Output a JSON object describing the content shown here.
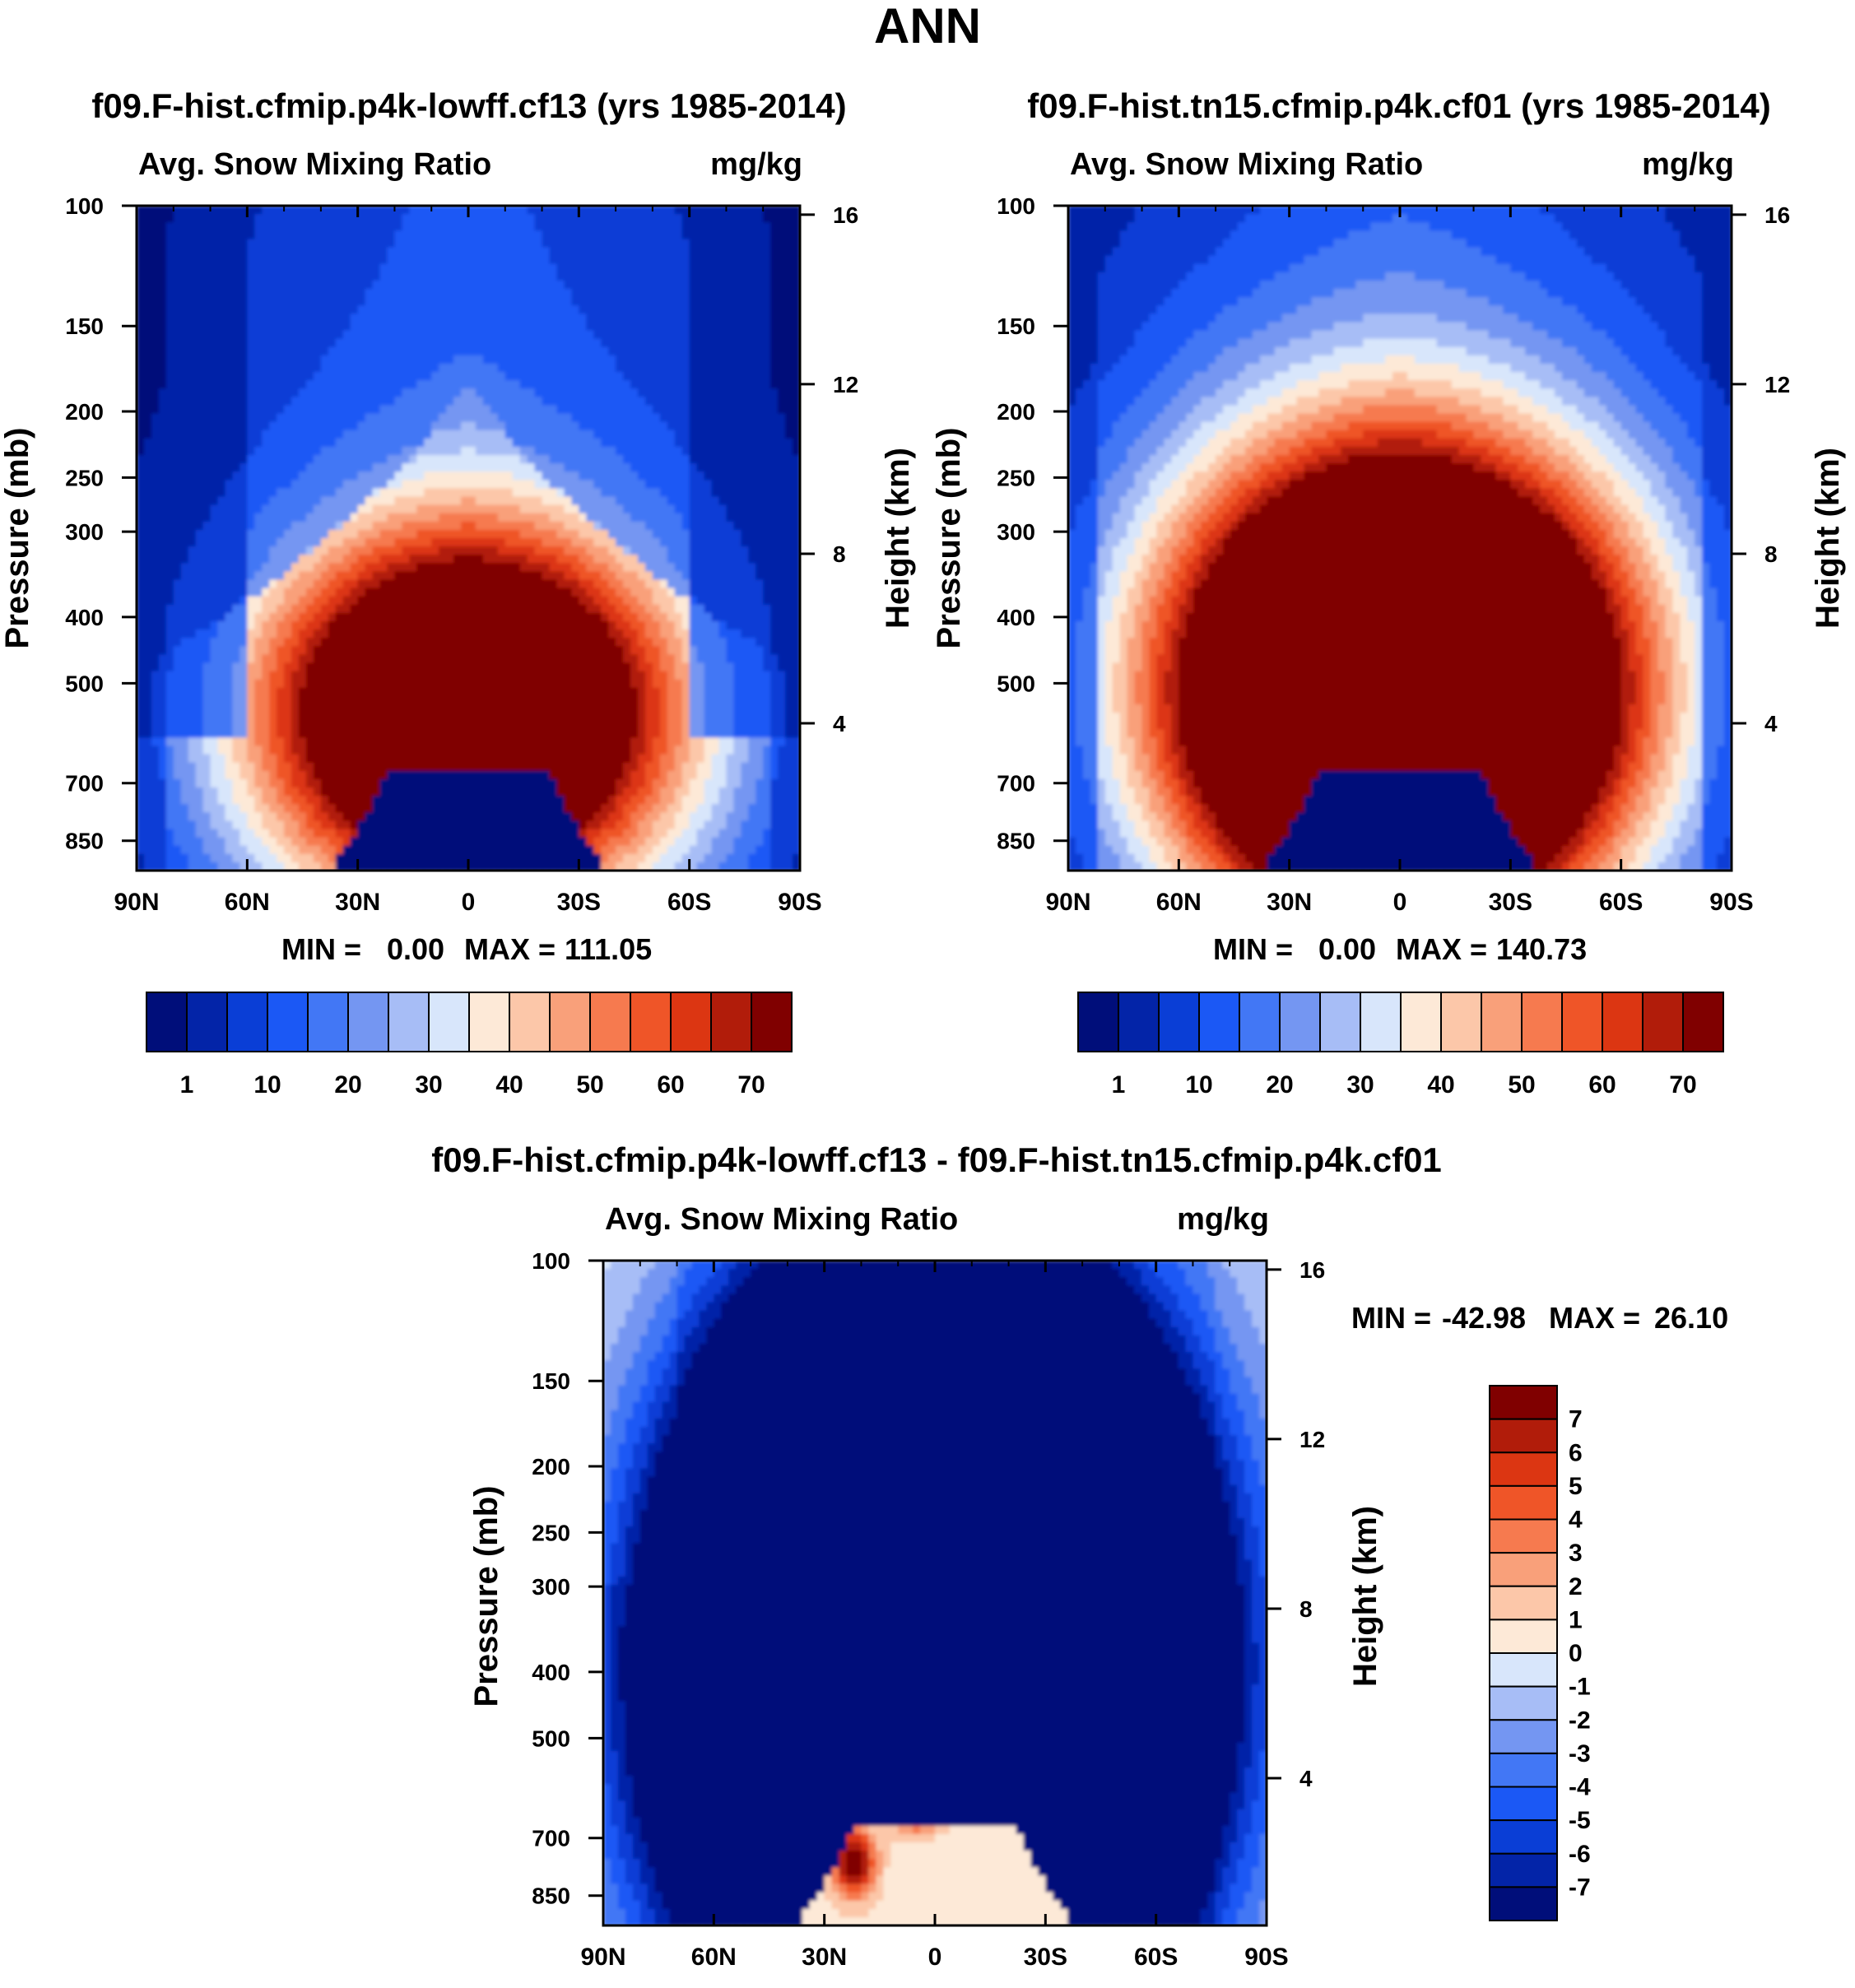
{
  "figure": {
    "main_title": "ANN"
  },
  "colorbar_colors_16": [
    "#000e7a",
    "#0324a8",
    "#0a3ed6",
    "#1b58f5",
    "#4277f5",
    "#7496f2",
    "#a7bdf6",
    "#d8e6fb",
    "#fde9d7",
    "#fcc7a9",
    "#f9a07a",
    "#f67a4f",
    "#ef5528",
    "#dc3612",
    "#b11c0a",
    "#800000"
  ],
  "colorbar_colors_14": [
    "#000e7a",
    "#0324a8",
    "#1b58f5",
    "#4277f5",
    "#7496f2",
    "#a7bdf6",
    "#d8e6fb",
    "#fde9d7",
    "#fcc7a9",
    "#f9a07a",
    "#f67a4f",
    "#ef5528",
    "#b11c0a",
    "#800000"
  ],
  "chart_data": [
    {
      "type": "heatmap",
      "title": "f09.F-hist.cfmip.p4k-lowff.cf13 (yrs 1985-2014)",
      "left_subtitle": "Avg. Snow Mixing Ratio",
      "right_subtitle": "mg/kg",
      "xlabel": "",
      "ylabel": "Pressure (mb)",
      "y2label": "Height (km)",
      "x_ticks": [
        "90N",
        "60N",
        "30N",
        "0",
        "30S",
        "60S",
        "90S"
      ],
      "y_ticks": [
        "100",
        "150",
        "200",
        "250",
        "300",
        "400",
        "500",
        "700",
        "850"
      ],
      "y2_ticks": [
        "16",
        "12",
        "8",
        "4"
      ],
      "stats": {
        "min_label": "MIN =",
        "min": "0.00",
        "max_label": "MAX =",
        "max": "111.05"
      },
      "colorbar_labels": [
        "1",
        "10",
        "20",
        "30",
        "40",
        "50",
        "60",
        "70"
      ],
      "pattern": {
        "peak_lat": 0,
        "peak_p": 550,
        "top_p": 270,
        "max": 111.05,
        "topo_cut_p": 680
      }
    },
    {
      "type": "heatmap",
      "title": "f09.F-hist.tn15.cfmip.p4k.cf01 (yrs 1985-2014)",
      "left_subtitle": "Avg. Snow Mixing Ratio",
      "right_subtitle": "mg/kg",
      "xlabel": "",
      "ylabel": "Pressure (mb)",
      "y2label": "Height (km)",
      "x_ticks": [
        "90N",
        "60N",
        "30N",
        "0",
        "30S",
        "60S",
        "90S"
      ],
      "y_ticks": [
        "100",
        "150",
        "200",
        "250",
        "300",
        "400",
        "500",
        "700",
        "850"
      ],
      "y2_ticks": [
        "16",
        "12",
        "8",
        "4"
      ],
      "stats": {
        "min_label": "MIN =",
        "min": "0.00",
        "max_label": "MAX =",
        "max": "140.73"
      },
      "colorbar_labels": [
        "1",
        "10",
        "20",
        "30",
        "40",
        "50",
        "60",
        "70"
      ],
      "pattern": {
        "peak_lat": 0,
        "peak_p": 480,
        "top_p": 240,
        "max": 140.73,
        "topo_cut_p": 680
      }
    },
    {
      "type": "heatmap",
      "title": "f09.F-hist.cfmip.p4k-lowff.cf13 - f09.F-hist.tn15.cfmip.p4k.cf01",
      "left_subtitle": "Avg. Snow Mixing Ratio",
      "right_subtitle": "mg/kg",
      "xlabel": "",
      "ylabel": "Pressure (mb)",
      "y2label": "Height (km)",
      "x_ticks": [
        "90N",
        "60N",
        "30N",
        "0",
        "30S",
        "60S",
        "90S"
      ],
      "y_ticks": [
        "100",
        "150",
        "200",
        "250",
        "300",
        "400",
        "500",
        "700",
        "850"
      ],
      "y2_ticks": [
        "16",
        "12",
        "8",
        "4"
      ],
      "stats": {
        "min_label": "MIN =",
        "min": "-42.98",
        "max_label": "MAX =",
        "max": "26.10"
      },
      "colorbar_labels": [
        "7",
        "6",
        "5",
        "4",
        "3",
        "2",
        "1",
        "0",
        "-1",
        "-2",
        "-3",
        "-4",
        "-5",
        "-6",
        "-7"
      ],
      "pattern": {
        "min": -42.98,
        "max": 26.1,
        "topo_cut_p": 680
      }
    }
  ]
}
